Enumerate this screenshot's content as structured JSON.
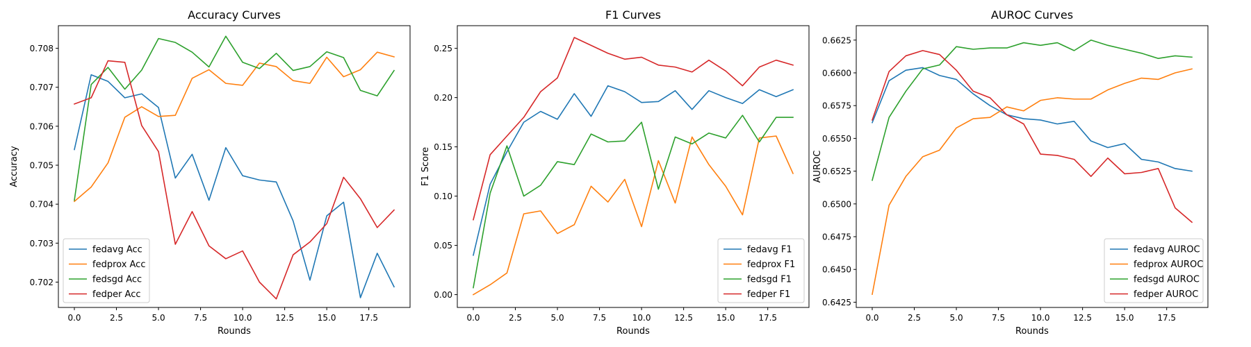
{
  "chart_data": [
    {
      "type": "line",
      "title": "Accuracy Curves",
      "xlabel": "Rounds",
      "ylabel": "Accuracy",
      "xlim": [
        -0.95,
        19.95
      ],
      "ylim": [
        0.70135,
        0.70858
      ],
      "xticks": [
        0.0,
        2.5,
        5.0,
        7.5,
        10.0,
        12.5,
        15.0,
        17.5
      ],
      "xtick_labels": [
        "0.0",
        "2.5",
        "5.0",
        "7.5",
        "10.0",
        "12.5",
        "15.0",
        "17.5"
      ],
      "yticks": [
        0.702,
        0.703,
        0.704,
        0.705,
        0.706,
        0.707,
        0.708
      ],
      "ytick_labels": [
        "0.702",
        "0.703",
        "0.704",
        "0.705",
        "0.706",
        "0.707",
        "0.708"
      ],
      "legend_position": "lower-left",
      "grid": false,
      "x": [
        0,
        1,
        2,
        3,
        4,
        5,
        6,
        7,
        8,
        9,
        10,
        11,
        12,
        13,
        14,
        15,
        16,
        17,
        18,
        19
      ],
      "series": [
        {
          "name": "fedavg Acc",
          "color": "#1f77b4",
          "values": [
            0.7054,
            0.70732,
            0.70715,
            0.70673,
            0.70683,
            0.70648,
            0.70467,
            0.70528,
            0.7041,
            0.70545,
            0.70473,
            0.70462,
            0.70457,
            0.70357,
            0.70205,
            0.7037,
            0.70405,
            0.7016,
            0.70274,
            0.70188
          ]
        },
        {
          "name": "fedprox Acc",
          "color": "#ff7f0e",
          "values": [
            0.70407,
            0.70444,
            0.70506,
            0.70623,
            0.7065,
            0.70625,
            0.70628,
            0.70723,
            0.70745,
            0.7071,
            0.70705,
            0.70762,
            0.70753,
            0.70717,
            0.7071,
            0.70777,
            0.70727,
            0.70745,
            0.7079,
            0.70778
          ]
        },
        {
          "name": "fedsgd Acc",
          "color": "#2ca02c",
          "values": [
            0.7041,
            0.70707,
            0.70751,
            0.70695,
            0.70744,
            0.70825,
            0.70815,
            0.7079,
            0.70752,
            0.70831,
            0.70764,
            0.70748,
            0.70787,
            0.70743,
            0.70753,
            0.70791,
            0.70776,
            0.70692,
            0.70678,
            0.70743
          ]
        },
        {
          "name": "fedper Acc",
          "color": "#d62728",
          "values": [
            0.70657,
            0.70673,
            0.70768,
            0.70764,
            0.70602,
            0.70535,
            0.70297,
            0.70381,
            0.70293,
            0.7026,
            0.7028,
            0.702,
            0.70157,
            0.7027,
            0.70303,
            0.7035,
            0.70469,
            0.70414,
            0.7034,
            0.70385
          ]
        }
      ]
    },
    {
      "type": "line",
      "title": "F1 Curves",
      "xlabel": "Rounds",
      "ylabel": "F1 Score",
      "xlim": [
        -0.95,
        19.95
      ],
      "ylim": [
        -0.013,
        0.273
      ],
      "xticks": [
        0.0,
        2.5,
        5.0,
        7.5,
        10.0,
        12.5,
        15.0,
        17.5
      ],
      "xtick_labels": [
        "0.0",
        "2.5",
        "5.0",
        "7.5",
        "10.0",
        "12.5",
        "15.0",
        "17.5"
      ],
      "yticks": [
        0.0,
        0.05,
        0.1,
        0.15,
        0.2,
        0.25
      ],
      "ytick_labels": [
        "0.00",
        "0.05",
        "0.10",
        "0.15",
        "0.20",
        "0.25"
      ],
      "legend_position": "lower-right",
      "grid": false,
      "x": [
        0,
        1,
        2,
        3,
        4,
        5,
        6,
        7,
        8,
        9,
        10,
        11,
        12,
        13,
        14,
        15,
        16,
        17,
        18,
        19
      ],
      "series": [
        {
          "name": "fedavg F1",
          "color": "#1f77b4",
          "values": [
            0.04,
            0.112,
            0.145,
            0.175,
            0.186,
            0.178,
            0.204,
            0.181,
            0.212,
            0.206,
            0.195,
            0.196,
            0.207,
            0.188,
            0.207,
            0.2,
            0.194,
            0.208,
            0.201,
            0.208
          ]
        },
        {
          "name": "fedprox F1",
          "color": "#ff7f0e",
          "values": [
            0.0,
            0.01,
            0.022,
            0.082,
            0.085,
            0.062,
            0.071,
            0.11,
            0.094,
            0.117,
            0.069,
            0.136,
            0.093,
            0.16,
            0.132,
            0.11,
            0.081,
            0.159,
            0.161,
            0.123
          ]
        },
        {
          "name": "fedsgd F1",
          "color": "#2ca02c",
          "values": [
            0.007,
            0.103,
            0.151,
            0.1,
            0.111,
            0.135,
            0.132,
            0.163,
            0.155,
            0.156,
            0.175,
            0.107,
            0.16,
            0.153,
            0.164,
            0.159,
            0.182,
            0.155,
            0.18,
            0.18
          ]
        },
        {
          "name": "fedper F1",
          "color": "#d62728",
          "values": [
            0.076,
            0.142,
            0.161,
            0.18,
            0.206,
            0.22,
            0.261,
            0.253,
            0.245,
            0.239,
            0.241,
            0.233,
            0.231,
            0.226,
            0.238,
            0.227,
            0.212,
            0.231,
            0.238,
            0.233
          ]
        }
      ]
    },
    {
      "type": "line",
      "title": "AUROC Curves",
      "xlabel": "Rounds",
      "ylabel": "AUROC",
      "xlim": [
        -0.95,
        19.95
      ],
      "ylim": [
        0.6421,
        0.6636
      ],
      "xticks": [
        0.0,
        2.5,
        5.0,
        7.5,
        10.0,
        12.5,
        15.0,
        17.5
      ],
      "xtick_labels": [
        "0.0",
        "2.5",
        "5.0",
        "7.5",
        "10.0",
        "12.5",
        "15.0",
        "17.5"
      ],
      "yticks": [
        0.6425,
        0.645,
        0.6475,
        0.65,
        0.6525,
        0.655,
        0.6575,
        0.66,
        0.6625
      ],
      "ytick_labels": [
        "0.6425",
        "0.6450",
        "0.6475",
        "0.6500",
        "0.6525",
        "0.6550",
        "0.6575",
        "0.6600",
        "0.6625"
      ],
      "legend_position": "lower-right",
      "grid": false,
      "x": [
        0,
        1,
        2,
        3,
        4,
        5,
        6,
        7,
        8,
        9,
        10,
        11,
        12,
        13,
        14,
        15,
        16,
        17,
        18,
        19
      ],
      "series": [
        {
          "name": "fedavg AUROC",
          "color": "#1f77b4",
          "values": [
            0.6562,
            0.6594,
            0.6602,
            0.6604,
            0.6598,
            0.6595,
            0.6584,
            0.6575,
            0.6568,
            0.6565,
            0.6564,
            0.6561,
            0.6563,
            0.6548,
            0.6543,
            0.6546,
            0.6534,
            0.6532,
            0.6527,
            0.6525
          ]
        },
        {
          "name": "fedprox AUROC",
          "color": "#ff7f0e",
          "values": [
            0.6431,
            0.6499,
            0.6521,
            0.6536,
            0.6541,
            0.6558,
            0.6565,
            0.6566,
            0.6574,
            0.6571,
            0.6579,
            0.6581,
            0.658,
            0.658,
            0.6587,
            0.6592,
            0.6596,
            0.6595,
            0.66,
            0.6603
          ]
        },
        {
          "name": "fedsgd AUROC",
          "color": "#2ca02c",
          "values": [
            0.6518,
            0.6566,
            0.6586,
            0.6603,
            0.6606,
            0.662,
            0.6618,
            0.6619,
            0.6619,
            0.6623,
            0.6621,
            0.6623,
            0.6617,
            0.6625,
            0.6621,
            0.6618,
            0.6615,
            0.6611,
            0.6613,
            0.6612
          ]
        },
        {
          "name": "fedper AUROC",
          "color": "#d62728",
          "values": [
            0.6564,
            0.6601,
            0.6613,
            0.6617,
            0.6614,
            0.6602,
            0.6586,
            0.6581,
            0.6568,
            0.6561,
            0.6538,
            0.6537,
            0.6534,
            0.6521,
            0.6535,
            0.6523,
            0.6524,
            0.6527,
            0.6497,
            0.6486
          ]
        }
      ]
    }
  ]
}
